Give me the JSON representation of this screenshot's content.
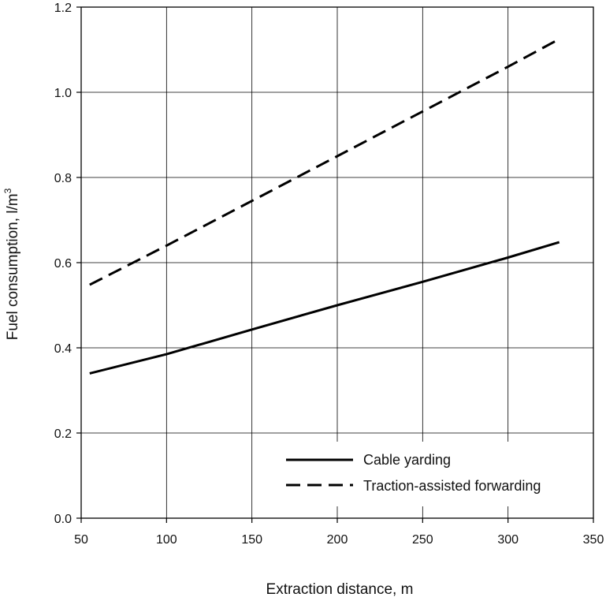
{
  "chart_data": {
    "type": "line",
    "title": "",
    "xlabel": "Extraction distance, m",
    "ylabel": "Fuel consumption, l/m",
    "ylabel_superscript": "3",
    "xlim": [
      50,
      350
    ],
    "ylim": [
      0,
      1.2
    ],
    "x_ticks": [
      50,
      100,
      150,
      200,
      250,
      300,
      350
    ],
    "y_ticks": [
      0,
      0.2,
      0.4,
      0.6,
      0.8,
      1.0,
      1.2
    ],
    "x_tick_labels": [
      "50",
      "100",
      "150",
      "200",
      "250",
      "300",
      "350"
    ],
    "y_tick_labels": [
      "0.0",
      "0.2",
      "0.4",
      "0.6",
      "0.8",
      "1.0",
      "1.2"
    ],
    "grid": true,
    "legend_position": "bottom-right",
    "series": [
      {
        "name": "Cable yarding",
        "style": "solid",
        "color": "#000000",
        "x": [
          55,
          100,
          150,
          200,
          250,
          300,
          330
        ],
        "y": [
          0.34,
          0.385,
          0.443,
          0.5,
          0.555,
          0.612,
          0.648
        ]
      },
      {
        "name": "Traction-assisted forwarding",
        "style": "dashed",
        "color": "#000000",
        "x": [
          55,
          100,
          150,
          200,
          250,
          300,
          330
        ],
        "y": [
          0.548,
          0.64,
          0.745,
          0.85,
          0.955,
          1.06,
          1.125
        ]
      }
    ]
  }
}
